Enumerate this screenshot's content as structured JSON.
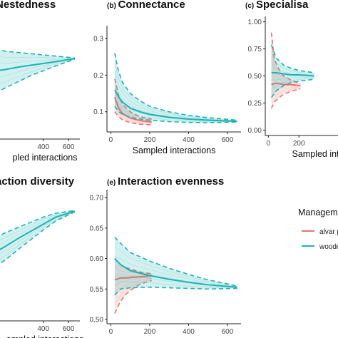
{
  "colors": {
    "alvar": "#e8736d",
    "wooded": "#20b2b2",
    "axis": "#222222",
    "tick_text": "#444444"
  },
  "legend": {
    "title": "Managem",
    "items": [
      {
        "label": "alvar p",
        "color": "#e8736d"
      },
      {
        "label": "woode",
        "color": "#20b2b2"
      }
    ]
  },
  "chart_data": [
    {
      "id": "a",
      "type": "line",
      "letter": "",
      "title": "Nestedness",
      "xlabel": "pled interactions",
      "xlim": [
        0,
        690
      ],
      "xticks": [
        400,
        600
      ],
      "ylim": [
        0,
        1
      ],
      "yticks": [],
      "series": [
        {
          "name": "wooded",
          "color": "#20b2b2",
          "x": [
            20,
            100,
            200,
            300,
            400,
            500,
            650
          ],
          "mean": [
            0.56,
            0.57,
            0.59,
            0.605,
            0.62,
            0.635,
            0.66
          ],
          "lo": [
            0.38,
            0.42,
            0.47,
            0.52,
            0.56,
            0.6,
            0.655
          ],
          "hi": [
            0.74,
            0.72,
            0.71,
            0.7,
            0.69,
            0.68,
            0.665
          ]
        }
      ]
    },
    {
      "id": "b",
      "type": "line",
      "letter": "(b)",
      "title": "Connectance",
      "xlabel": "Sampled interactions",
      "xlim": [
        -20,
        670
      ],
      "xticks": [
        0,
        200,
        400,
        600
      ],
      "ylim": [
        0.045,
        0.335
      ],
      "yticks": [
        0.1,
        0.2,
        0.3
      ],
      "series": [
        {
          "name": "alvar",
          "color": "#e8736d",
          "x": [
            20,
            40,
            60,
            100,
            150,
            210
          ],
          "mean": [
            0.14,
            0.11,
            0.095,
            0.083,
            0.076,
            0.072
          ],
          "lo": [
            0.1,
            0.087,
            0.078,
            0.07,
            0.066,
            0.064
          ],
          "hi": [
            0.19,
            0.145,
            0.12,
            0.1,
            0.086,
            0.08
          ]
        },
        {
          "name": "wooded",
          "color": "#20b2b2",
          "x": [
            20,
            40,
            60,
            100,
            150,
            200,
            300,
            400,
            500,
            650
          ],
          "mean": [
            0.16,
            0.14,
            0.127,
            0.11,
            0.1,
            0.093,
            0.085,
            0.08,
            0.077,
            0.074
          ],
          "lo": [
            0.115,
            0.1,
            0.093,
            0.085,
            0.08,
            0.077,
            0.073,
            0.071,
            0.07,
            0.072
          ],
          "hi": [
            0.26,
            0.21,
            0.18,
            0.15,
            0.13,
            0.115,
            0.1,
            0.09,
            0.084,
            0.077
          ]
        }
      ]
    },
    {
      "id": "c",
      "type": "line",
      "letter": "(c)",
      "title": "Specialisa",
      "xlabel": "Sampled inte",
      "xlim": [
        -20,
        670
      ],
      "xticks": [
        0,
        200
      ],
      "ylim": [
        -0.05,
        1.05
      ],
      "yticks": [
        0.0,
        0.25,
        0.5,
        0.75,
        1.0
      ],
      "series": [
        {
          "name": "alvar",
          "color": "#e8736d",
          "x": [
            20,
            40,
            70,
            100,
            150,
            210
          ],
          "mean": [
            0.42,
            0.43,
            0.43,
            0.42,
            0.42,
            0.41
          ],
          "lo": [
            0.2,
            0.26,
            0.3,
            0.33,
            0.36,
            0.38
          ],
          "hi": [
            0.9,
            0.65,
            0.56,
            0.5,
            0.46,
            0.43
          ]
        },
        {
          "name": "wooded",
          "color": "#20b2b2",
          "x": [
            20,
            50,
            100,
            150,
            200,
            300
          ],
          "mean": [
            0.53,
            0.53,
            0.52,
            0.51,
            0.51,
            0.5
          ],
          "lo": [
            0.3,
            0.36,
            0.41,
            0.44,
            0.45,
            0.47
          ],
          "hi": [
            0.79,
            0.67,
            0.6,
            0.57,
            0.55,
            0.53
          ]
        }
      ]
    },
    {
      "id": "d",
      "type": "line",
      "letter": "",
      "title": "action diversity",
      "xlabel": "ampled interactions",
      "xlim": [
        0,
        690
      ],
      "xticks": [
        400,
        600
      ],
      "ylim": [
        0,
        1
      ],
      "yticks": [],
      "series": [
        {
          "name": "wooded",
          "color": "#20b2b2",
          "x": [
            20,
            100,
            200,
            300,
            400,
            500,
            650
          ],
          "mean": [
            0.53,
            0.575,
            0.635,
            0.69,
            0.745,
            0.8,
            0.845
          ],
          "lo": [
            0.42,
            0.47,
            0.55,
            0.625,
            0.7,
            0.77,
            0.84
          ],
          "hi": [
            0.64,
            0.68,
            0.72,
            0.76,
            0.8,
            0.83,
            0.85
          ]
        }
      ]
    },
    {
      "id": "e",
      "type": "line",
      "letter": "(e)",
      "title": "Interaction evenness",
      "xlabel": "Sampled interactions",
      "xlim": [
        -20,
        670
      ],
      "xticks": [
        0,
        200,
        400,
        600
      ],
      "ylim": [
        0.493,
        0.713
      ],
      "yticks": [
        0.5,
        0.55,
        0.6,
        0.65,
        0.7
      ],
      "series": [
        {
          "name": "alvar",
          "color": "#e8736d",
          "x": [
            20,
            50,
            80,
            110,
            150,
            210
          ],
          "mean": [
            0.565,
            0.568,
            0.568,
            0.569,
            0.57,
            0.572
          ],
          "lo": [
            0.51,
            0.53,
            0.542,
            0.55,
            0.558,
            0.564
          ],
          "hi": [
            0.6,
            0.59,
            0.585,
            0.582,
            0.578,
            0.575
          ]
        },
        {
          "name": "wooded",
          "color": "#20b2b2",
          "x": [
            20,
            50,
            100,
            200,
            300,
            400,
            500,
            650
          ],
          "mean": [
            0.6,
            0.59,
            0.58,
            0.572,
            0.566,
            0.561,
            0.557,
            0.553
          ],
          "lo": [
            0.54,
            0.55,
            0.552,
            0.553,
            0.552,
            0.551,
            0.55,
            0.551
          ],
          "hi": [
            0.635,
            0.625,
            0.61,
            0.596,
            0.584,
            0.574,
            0.565,
            0.555
          ]
        }
      ]
    }
  ]
}
